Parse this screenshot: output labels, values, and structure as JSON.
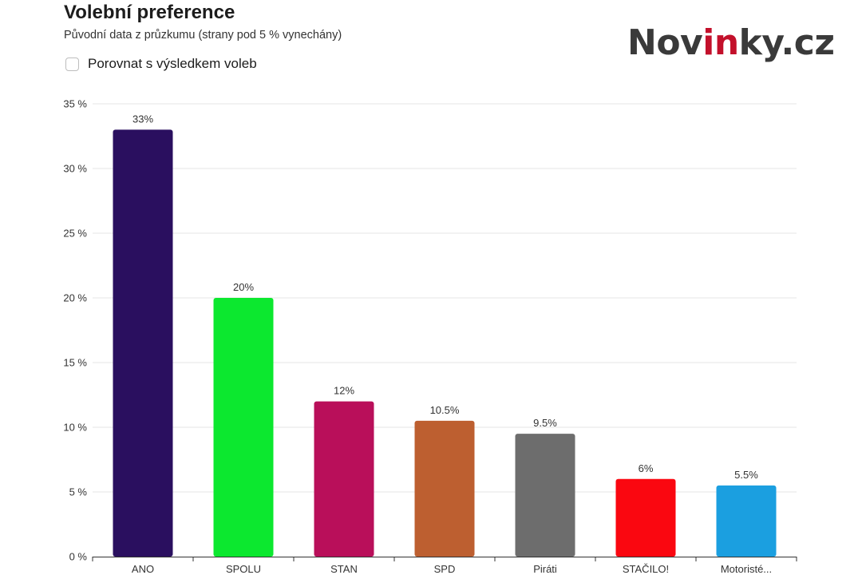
{
  "header": {
    "title": "Volební preference",
    "subtitle": "Původní data z průzkumu (strany pod 5 % vynechány)",
    "compare_label": "Porovnat s výsledkem voleb",
    "compare_checked": false
  },
  "logo": {
    "part1": "Nov",
    "accent": "in",
    "part2": "ky.cz"
  },
  "colors": {
    "gridline": "#e6e6e6",
    "axis": "#333333"
  },
  "chart_data": {
    "type": "bar",
    "categories": [
      "ANO",
      "SPOLU",
      "STAN",
      "SPD",
      "Piráti",
      "STAČILO!",
      "Motoristé..."
    ],
    "values": [
      33,
      20,
      12,
      10.5,
      9.5,
      6,
      5.5
    ],
    "data_labels": [
      "33%",
      "20%",
      "12%",
      "10.5%",
      "9.5%",
      "6%",
      "5.5%"
    ],
    "bar_colors": [
      "#2a0f5f",
      "#0ce82f",
      "#b90f5a",
      "#bd5f30",
      "#6d6d6d",
      "#fa0710",
      "#1b9fe0"
    ],
    "yticks": [
      0,
      5,
      10,
      15,
      20,
      25,
      30,
      35
    ],
    "ytick_labels": [
      "0 %",
      "5 %",
      "10 %",
      "15 %",
      "20 %",
      "25 %",
      "30 %",
      "35 %"
    ],
    "ylim": [
      0,
      35
    ],
    "grid": true,
    "legend": "none"
  }
}
